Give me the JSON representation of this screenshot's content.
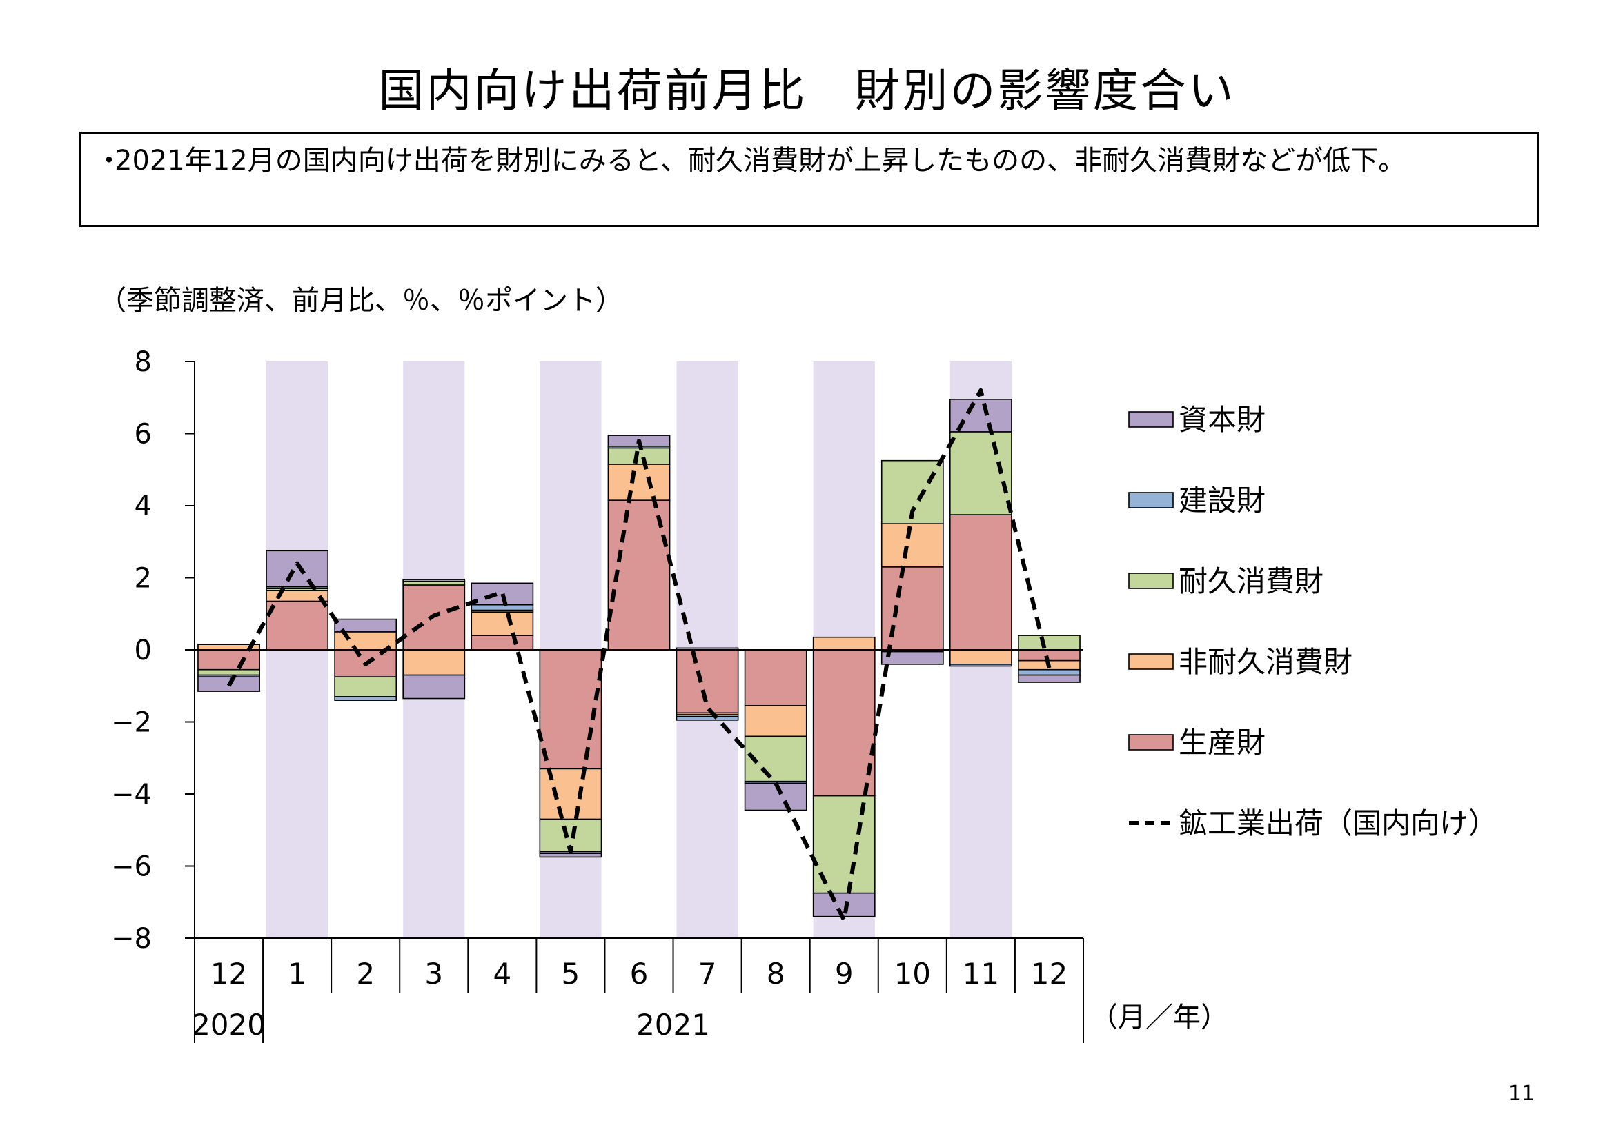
{
  "page": {
    "title": "国内向け出荷前月比　財別の影響度合い",
    "summary_bullet": "・",
    "summary": "2021年12月の国内向け出荷を財別にみると、耐久消費財が上昇したものの、非耐久消費財などが低下。",
    "units_note": "（季節調整済、前月比、％、％ポイント）",
    "page_number": "11"
  },
  "chart_data": {
    "type": "bar",
    "stacked": true,
    "title": "",
    "categories": [
      "12",
      "1",
      "2",
      "3",
      "4",
      "5",
      "6",
      "7",
      "8",
      "9",
      "10",
      "11",
      "12"
    ],
    "year_labels": [
      {
        "label": "2020",
        "from": 0,
        "to": 0
      },
      {
        "label": "2021",
        "from": 1,
        "to": 12
      }
    ],
    "x_unit_label": "（月／年）",
    "ylim": [
      -8,
      8
    ],
    "yticks": [
      8,
      6,
      4,
      2,
      0,
      -2,
      -4,
      -6,
      -8
    ],
    "ytick_labels": [
      "8",
      "6",
      "4",
      "2",
      "0",
      "−2",
      "−4",
      "−6",
      "−8"
    ],
    "shaded_months": [
      1,
      3,
      5,
      7,
      9,
      11
    ],
    "shade_color": "#e4dcef",
    "series": [
      {
        "name": "生産財",
        "color": "#d99694",
        "values": [
          -0.55,
          1.35,
          -0.75,
          1.8,
          0.4,
          -3.3,
          4.15,
          -1.75,
          -1.55,
          -4.05,
          2.3,
          3.75,
          -0.3
        ]
      },
      {
        "name": "非耐久消費財",
        "color": "#fac090",
        "values": [
          0.15,
          0.3,
          0.5,
          -0.7,
          0.65,
          -1.4,
          1.0,
          -0.05,
          -0.85,
          0.35,
          1.2,
          -0.4,
          -0.25
        ]
      },
      {
        "name": "耐久消費財",
        "color": "#c3d69b",
        "values": [
          -0.15,
          0.05,
          -0.55,
          0.1,
          0.05,
          -0.9,
          0.45,
          -0.05,
          -1.25,
          -2.7,
          1.75,
          2.3,
          0.4
        ]
      },
      {
        "name": "建設財",
        "color": "#95b3d7",
        "values": [
          -0.05,
          0.05,
          -0.1,
          0.05,
          0.15,
          -0.05,
          0.05,
          -0.1,
          -0.05,
          0.0,
          -0.05,
          -0.05,
          -0.15
        ]
      },
      {
        "name": "資本財",
        "color": "#b3a2c7",
        "values": [
          -0.4,
          1.0,
          0.35,
          -0.65,
          0.6,
          -0.1,
          0.3,
          0.05,
          -0.75,
          -0.65,
          -0.35,
          0.9,
          -0.2
        ]
      }
    ],
    "line": {
      "name": "鉱工業出荷（国内向け）",
      "style": "dashed",
      "color": "#000000",
      "values": [
        -1.0,
        2.4,
        -0.4,
        0.95,
        1.6,
        -5.6,
        5.8,
        -1.6,
        -3.7,
        -7.5,
        3.85,
        7.2,
        -0.5
      ]
    },
    "legend": {
      "placement": "right",
      "order": [
        "資本財",
        "建設財",
        "耐久消費財",
        "非耐久消費財",
        "生産財",
        "鉱工業出荷（国内向け）"
      ]
    }
  }
}
